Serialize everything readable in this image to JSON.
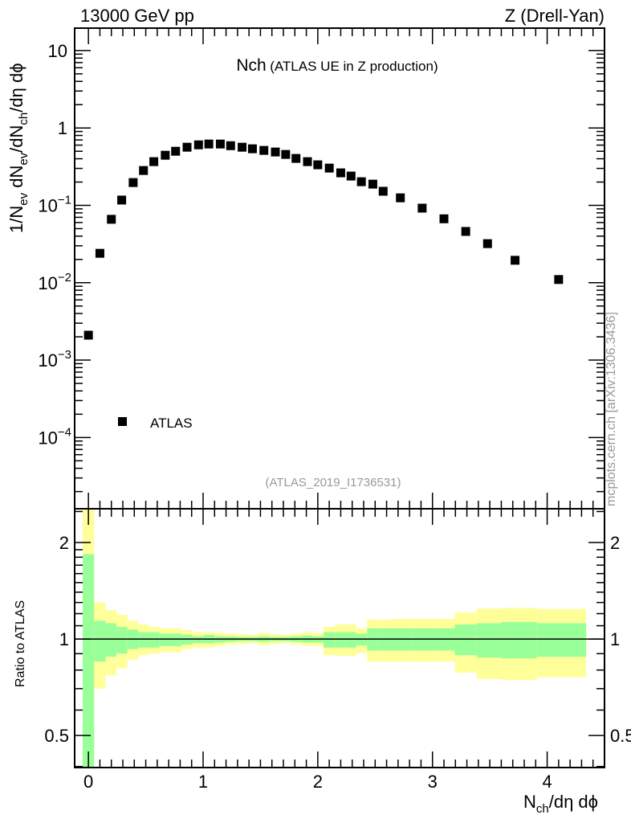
{
  "header": {
    "left": "13000 GeV pp",
    "right": "Z (Drell-Yan)"
  },
  "side_label": "mcplots.cern.ch [arXiv:1306.3436]",
  "analysis_id": "(ATLAS_2019_I1736531)",
  "chart_data": [
    {
      "type": "scatter",
      "title_main": "Nch",
      "title_sub": "(ATLAS UE in Z production)",
      "ylabel": {
        "p1": "1/N",
        "s1": "ev",
        "p2": " dN",
        "s2": "ev",
        "p3": "/dN",
        "s3": "ch",
        "p4": "/dη dϕ"
      },
      "xlabel": {
        "p1": "N",
        "s1": "ch",
        "p2": "/dη dϕ"
      },
      "yscale": "log",
      "ylim": [
        1.2e-05,
        19.5
      ],
      "xlim": [
        -0.12,
        4.5
      ],
      "y_tick_labels": [
        {
          "value": 10,
          "base": "10",
          "exp": ""
        },
        {
          "value": 1,
          "base": "1",
          "exp": ""
        },
        {
          "value": 0.1,
          "base": "10",
          "exp": "−1"
        },
        {
          "value": 0.01,
          "base": "10",
          "exp": "−2"
        },
        {
          "value": 0.001,
          "base": "10",
          "exp": "−3"
        },
        {
          "value": 0.0001,
          "base": "10",
          "exp": "−4"
        }
      ],
      "legend": {
        "label": "ATLAS",
        "placement": "bottom-left"
      },
      "series": [
        {
          "name": "ATLAS",
          "color": "#000000",
          "x": [
            0.0,
            0.1,
            0.2,
            0.29,
            0.39,
            0.48,
            0.57,
            0.67,
            0.76,
            0.86,
            0.96,
            1.05,
            1.15,
            1.24,
            1.34,
            1.43,
            1.53,
            1.63,
            1.72,
            1.81,
            1.91,
            2.0,
            2.1,
            2.2,
            2.29,
            2.38,
            2.48,
            2.57,
            2.72,
            2.91,
            3.1,
            3.29,
            3.48,
            3.72,
            4.1
          ],
          "y": [
            0.0021,
            0.024,
            0.066,
            0.117,
            0.197,
            0.282,
            0.367,
            0.444,
            0.5,
            0.564,
            0.605,
            0.62,
            0.62,
            0.59,
            0.564,
            0.538,
            0.513,
            0.489,
            0.455,
            0.404,
            0.367,
            0.334,
            0.303,
            0.263,
            0.239,
            0.202,
            0.188,
            0.152,
            0.125,
            0.092,
            0.067,
            0.046,
            0.032,
            0.0195,
            0.011
          ]
        }
      ]
    },
    {
      "type": "area",
      "ylabel": "Ratio to ATLAS",
      "yscale": "log",
      "ylim": [
        0.397,
        2.55
      ],
      "xlim": [
        -0.12,
        4.5
      ],
      "x_tick_labels": [
        "0",
        "1",
        "2",
        "3",
        "4"
      ],
      "y_tick_labels": [
        "2",
        "1",
        "0.5"
      ],
      "reference_line": 1,
      "band_colors": {
        "total": "#ffff99",
        "stat": "#99ff99"
      },
      "bin_edges_first": -0.05,
      "bin_edges_last": 4.34,
      "bands": [
        [
          0.3,
          0.3,
          1.84,
          3.0
        ],
        [
          0.7,
          0.85,
          1.14,
          1.3
        ],
        [
          0.77,
          0.88,
          1.12,
          1.23
        ],
        [
          0.81,
          0.9,
          1.09,
          1.19
        ],
        [
          0.86,
          0.93,
          1.07,
          1.14
        ],
        [
          0.89,
          0.94,
          1.05,
          1.11
        ],
        [
          0.9,
          0.94,
          1.05,
          1.09
        ],
        [
          0.91,
          0.95,
          1.04,
          1.08
        ],
        [
          0.91,
          0.95,
          1.04,
          1.08
        ],
        [
          0.93,
          0.96,
          1.03,
          1.065
        ],
        [
          0.94,
          0.97,
          1.02,
          1.05
        ],
        [
          0.94,
          0.97,
          1.03,
          1.05
        ],
        [
          0.95,
          0.975,
          1.02,
          1.045
        ],
        [
          0.96,
          0.98,
          1.02,
          1.04
        ],
        [
          0.965,
          0.985,
          1.015,
          1.035
        ],
        [
          0.97,
          0.985,
          1.015,
          1.03
        ],
        [
          0.955,
          0.98,
          1.02,
          1.045
        ],
        [
          0.965,
          0.985,
          1.015,
          1.035
        ],
        [
          0.97,
          0.985,
          1.015,
          1.03
        ],
        [
          0.96,
          0.98,
          1.02,
          1.04
        ],
        [
          0.955,
          0.975,
          1.025,
          1.05
        ],
        [
          0.95,
          0.975,
          1.02,
          1.045
        ],
        [
          0.89,
          0.94,
          1.05,
          1.09
        ],
        [
          0.885,
          0.94,
          1.05,
          1.11
        ],
        [
          0.885,
          0.94,
          1.05,
          1.11
        ],
        [
          0.905,
          0.955,
          1.04,
          1.08
        ],
        [
          0.85,
          0.92,
          1.08,
          1.15
        ],
        [
          0.85,
          0.92,
          1.08,
          1.15
        ],
        [
          0.85,
          0.92,
          1.08,
          1.155
        ],
        [
          0.85,
          0.92,
          1.08,
          1.155
        ],
        [
          0.85,
          0.92,
          1.08,
          1.155
        ],
        [
          0.785,
          0.89,
          1.11,
          1.21
        ],
        [
          0.75,
          0.875,
          1.12,
          1.245
        ],
        [
          0.745,
          0.87,
          1.13,
          1.25
        ],
        [
          0.76,
          0.88,
          1.12,
          1.24
        ]
      ]
    }
  ]
}
